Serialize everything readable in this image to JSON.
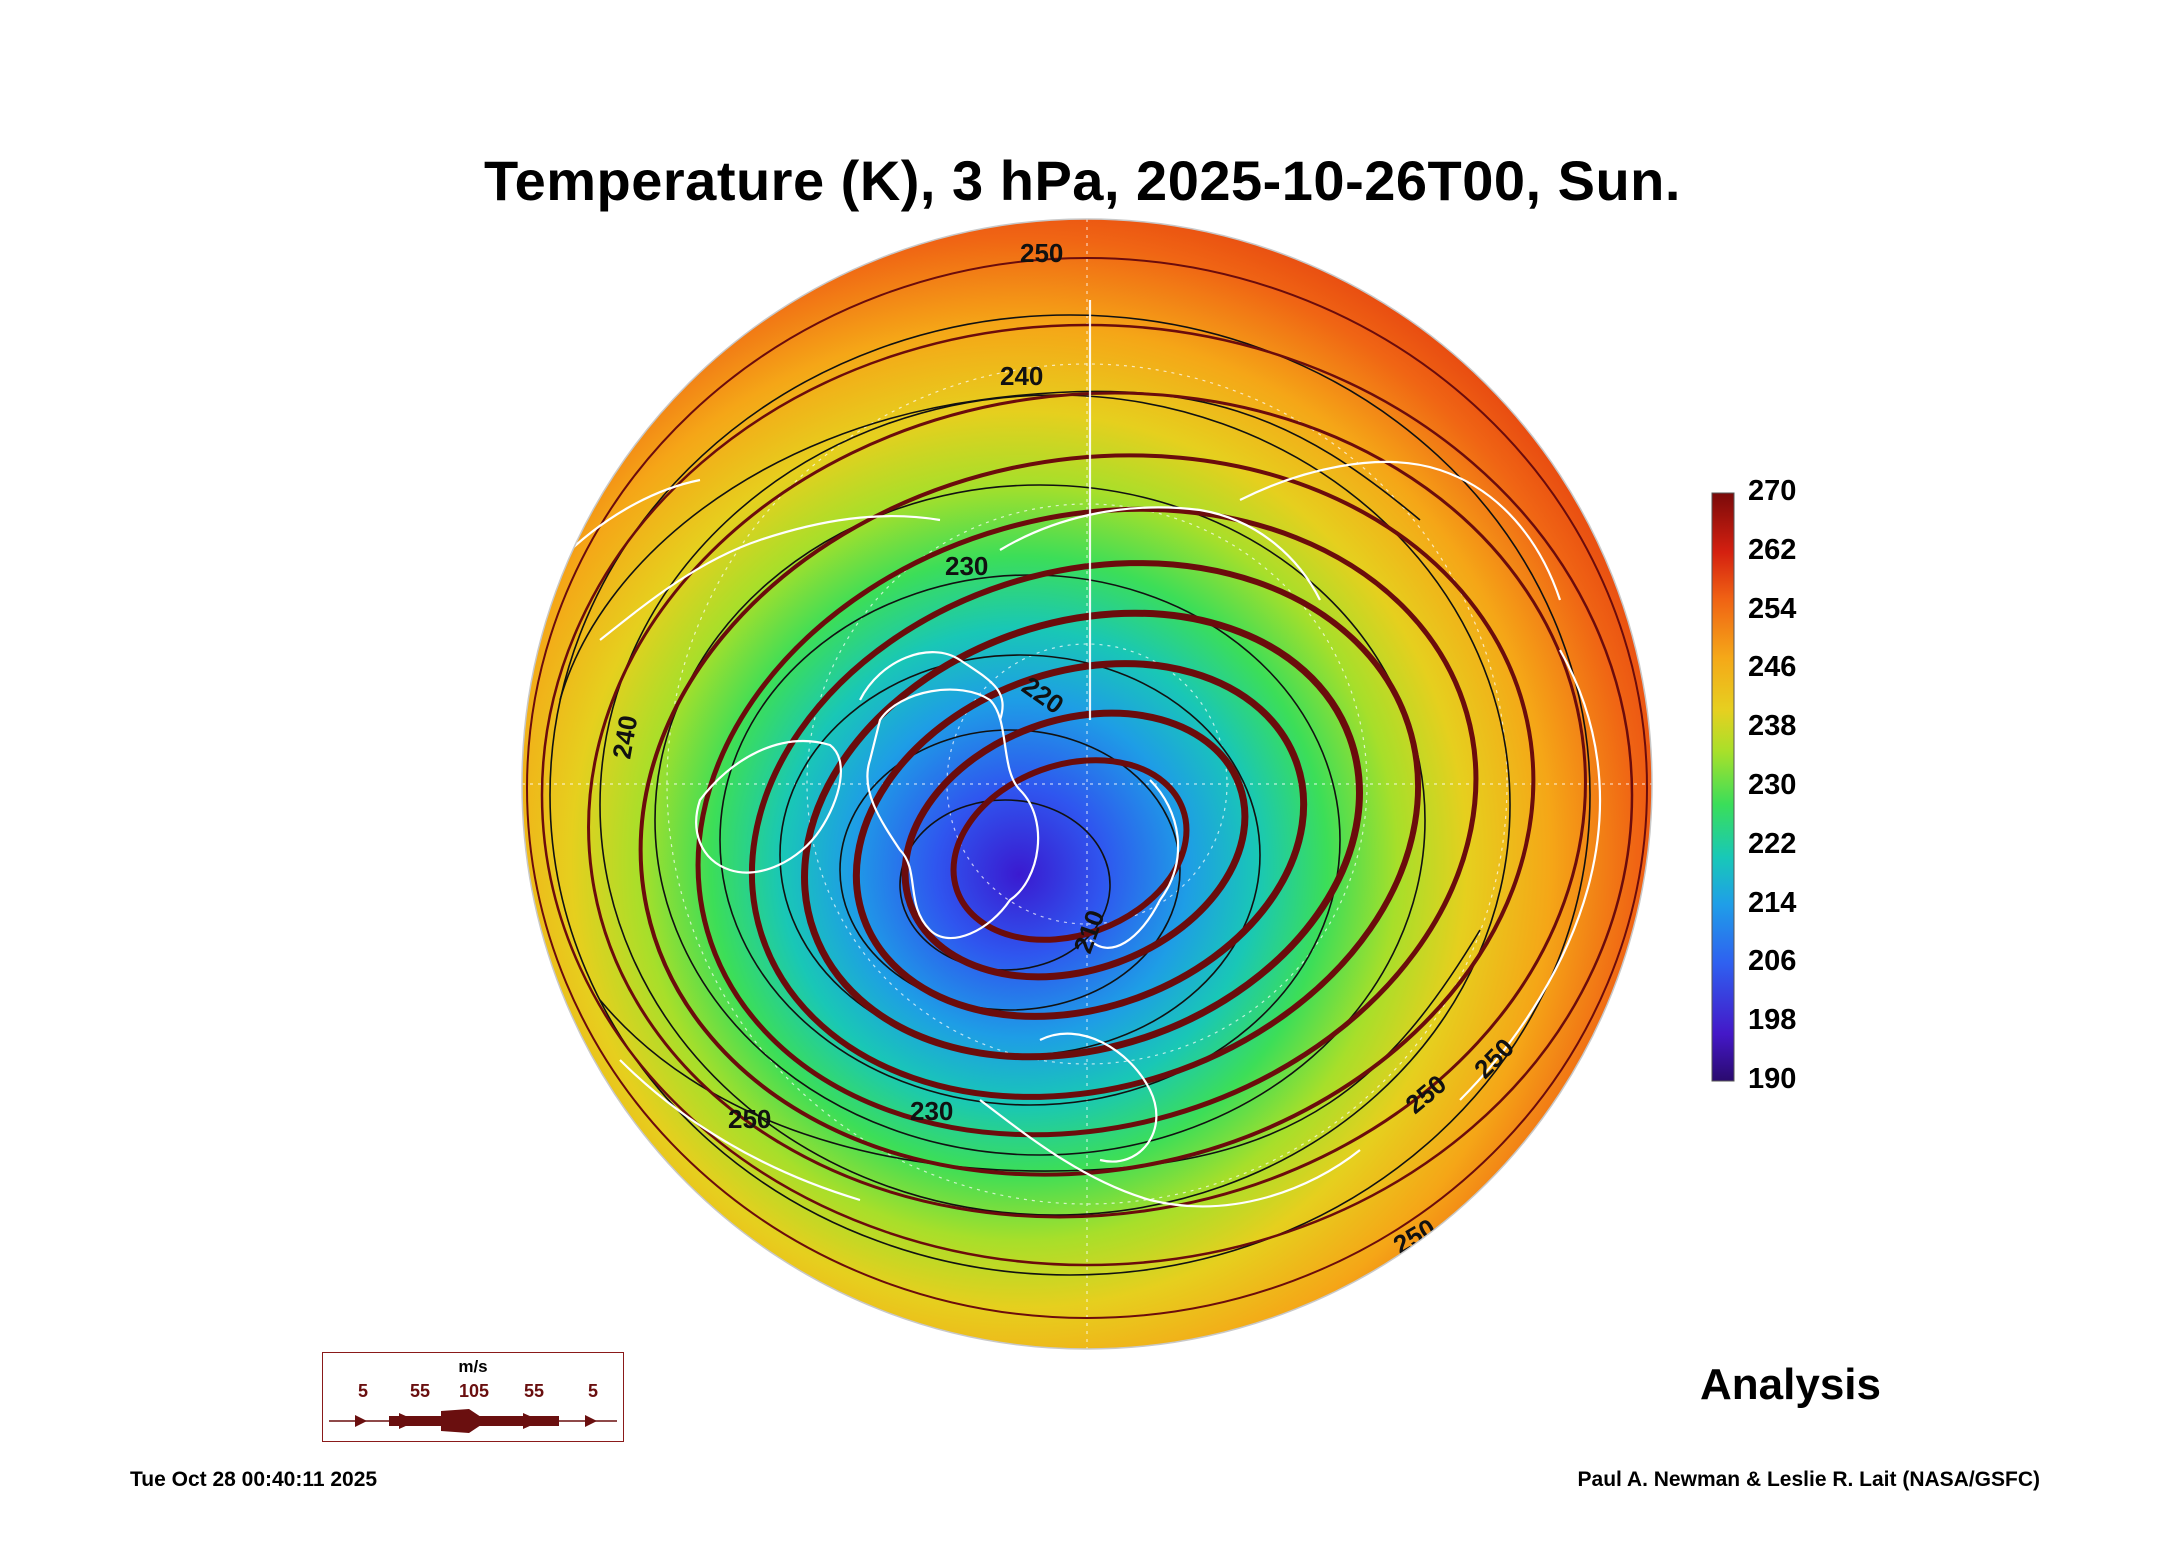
{
  "title": "Temperature (K), 3 hPa, 2025-10-26T00, Sun.",
  "analysis_label": "Analysis",
  "timestamp": "Tue Oct 28 00:40:11 2025",
  "credit": "Paul A. Newman & Leslie R. Lait (NASA/GSFC)",
  "colorbar": {
    "ticks": [
      "270",
      "262",
      "254",
      "246",
      "238",
      "230",
      "222",
      "214",
      "206",
      "198",
      "190"
    ],
    "min": 190,
    "max": 270,
    "colors": [
      "#2a0a6e",
      "#4418c8",
      "#2f60f0",
      "#1f9ee8",
      "#18c8b8",
      "#3ade5a",
      "#a8e02a",
      "#e6d020",
      "#f5a818",
      "#f06214",
      "#d42010",
      "#7a0a0a"
    ]
  },
  "contour_labels": [
    {
      "text": "250"
    },
    {
      "text": "240"
    },
    {
      "text": "230"
    },
    {
      "text": "220"
    },
    {
      "text": "210"
    },
    {
      "text": "240"
    },
    {
      "text": "230"
    },
    {
      "text": "250"
    },
    {
      "text": "250"
    },
    {
      "text": "250"
    },
    {
      "text": "250"
    }
  ],
  "wind_legend": {
    "unit": "m/s",
    "values": [
      "5",
      "55",
      "105",
      "55",
      "5"
    ],
    "color": "#6a0f0f"
  },
  "colors": {
    "coastline": "#ffffff",
    "streamline": "#6b0c0c",
    "contour": "#111111"
  }
}
